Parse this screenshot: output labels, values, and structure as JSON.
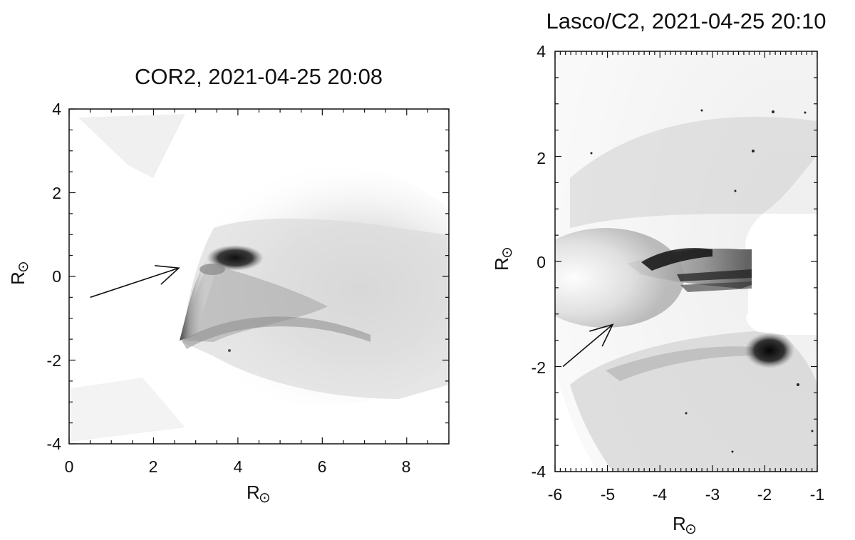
{
  "panels": [
    {
      "title": "COR2, 2021-04-25 20:08",
      "xlabel": "R",
      "ylabel": "R",
      "unit_symbol": "⊙",
      "xlim": [
        0,
        9
      ],
      "ylim": [
        -4,
        4
      ],
      "xticks": [
        "0",
        "2",
        "4",
        "6",
        "8"
      ],
      "yticks": [
        "4",
        "2",
        "0",
        "-2",
        "-4"
      ],
      "arrow_tip": [
        2.6,
        0.2
      ],
      "arrow_tail": [
        0.5,
        -0.5
      ]
    },
    {
      "title": "Lasco/C2, 2021-04-25 20:10",
      "xlabel": "R",
      "ylabel": "R",
      "unit_symbol": "⊙",
      "xlim": [
        -6,
        -1
      ],
      "ylim": [
        -4,
        4
      ],
      "xticks": [
        "-6",
        "-5",
        "-4",
        "-3",
        "-2",
        "-1"
      ],
      "yticks": [
        "4",
        "2",
        "0",
        "-2",
        "-4"
      ],
      "arrow_tip": [
        -4.9,
        -1.2
      ],
      "arrow_tail": [
        -5.85,
        -2.0
      ]
    }
  ]
}
